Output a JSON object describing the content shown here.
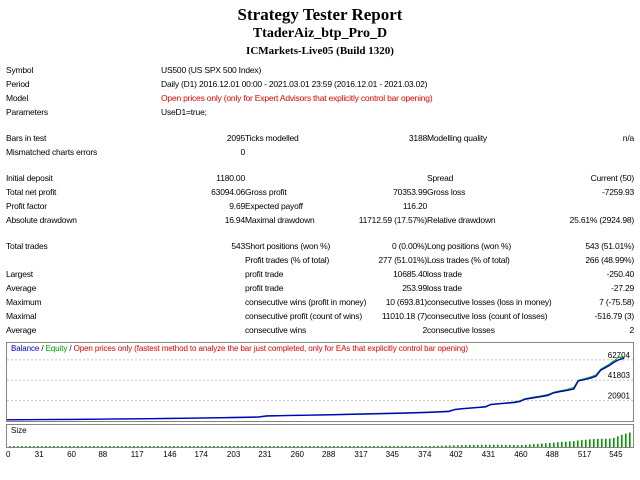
{
  "header": {
    "title": "Strategy Tester Report",
    "expert": "TtaderAiz_btp_Pro_D",
    "server": "ICMarkets-Live05 (Build 1320)"
  },
  "report_rows": [
    {
      "type": "wide",
      "label": "Symbol",
      "value": "US500 (US SPX 500 Index)"
    },
    {
      "type": "wide",
      "label": "Period",
      "value": "Daily (D1) 2016.12.01 00:00 - 2021.03.01 23:59 (2016.12.01 - 2021.03.02)"
    },
    {
      "type": "wide",
      "label": "Model",
      "value": "Open prices only (only for Expert Advisors that explicitly control bar opening)",
      "color": "#e00000"
    },
    {
      "type": "wide",
      "label": "Parameters",
      "value": "UseD1=true;"
    },
    {
      "type": "spacer"
    },
    {
      "type": "cells",
      "cells": [
        "Bars in test",
        "2095",
        "Ticks modelled",
        "3188",
        "Modelling quality",
        "n/a"
      ]
    },
    {
      "type": "cells",
      "cells": [
        "Mismatched charts errors",
        "0",
        "",
        "",
        "",
        ""
      ]
    },
    {
      "type": "spacer"
    },
    {
      "type": "cells",
      "cells": [
        "Initial deposit",
        "1180.00",
        "",
        "",
        "Spread",
        "Current (50)"
      ]
    },
    {
      "type": "cells",
      "cells": [
        "Total net profit",
        "63094.06",
        "Gross profit",
        "70353.99",
        "Gross loss",
        "-7259.93"
      ]
    },
    {
      "type": "cells",
      "cells": [
        "Profit factor",
        "9.69",
        "Expected payoff",
        "116.20",
        "",
        ""
      ]
    },
    {
      "type": "cells",
      "cells": [
        "Absolute drawdown",
        "16.94",
        "Maximal drawdown",
        "11712.59 (17.57%)",
        "Relative drawdown",
        "25.61% (2924.98)"
      ]
    },
    {
      "type": "spacer"
    },
    {
      "type": "cells",
      "cells": [
        "Total trades",
        "543",
        "Short positions (won %)",
        "0 (0.00%)",
        "Long positions (won %)",
        "543 (51.01%)"
      ]
    },
    {
      "type": "cells",
      "cells": [
        "",
        "",
        "Profit trades (% of total)",
        "277 (51.01%)",
        "Loss trades (% of total)",
        "266 (48.99%)"
      ]
    },
    {
      "type": "cells",
      "cells": [
        "Largest",
        "",
        "profit trade",
        "10685.40",
        "loss trade",
        "-250.40"
      ]
    },
    {
      "type": "cells",
      "cells": [
        "Average",
        "",
        "profit trade",
        "253.99",
        "loss trade",
        "-27.29"
      ]
    },
    {
      "type": "cells",
      "cells": [
        "Maximum",
        "",
        "consecutive wins (profit in money)",
        "10 (693.81)",
        "consecutive losses (loss in money)",
        "7 (-75.58)"
      ]
    },
    {
      "type": "cells",
      "cells": [
        "Maximal",
        "",
        "consecutive profit (count of wins)",
        "11010.18 (7)",
        "consecutive loss (count of losses)",
        "-516.79 (3)"
      ]
    },
    {
      "type": "cells",
      "cells": [
        "Average",
        "",
        "consecutive wins",
        "2",
        "consecutive losses",
        "2"
      ]
    }
  ],
  "chart_data": {
    "type": "line",
    "legend": {
      "balance": "Balance",
      "sep": " / ",
      "equity": "Equity",
      "note": "Open prices only (fastest method to analyze the bar just completed, only for EAs that explicitly control bar opening)"
    },
    "size_label": "Size",
    "x_max": 560,
    "y_max": 80000,
    "y_ticks": [
      62704,
      41803,
      20901
    ],
    "x_ticks": [
      0,
      31,
      60,
      88,
      117,
      146,
      174,
      203,
      231,
      260,
      288,
      317,
      345,
      374,
      402,
      431,
      460,
      488,
      517,
      545
    ],
    "balance_color": "#0000c8",
    "equity_color": "#00a000",
    "size_color": "#009900",
    "grid_color": "#c8c8c8",
    "note_color": "#e00000",
    "balance": [
      [
        0,
        1180
      ],
      [
        30,
        1400
      ],
      [
        60,
        1650
      ],
      [
        90,
        1950
      ],
      [
        120,
        2300
      ],
      [
        150,
        2700
      ],
      [
        180,
        3150
      ],
      [
        205,
        3600
      ],
      [
        225,
        4000
      ],
      [
        232,
        5100
      ],
      [
        250,
        5500
      ],
      [
        270,
        5950
      ],
      [
        290,
        6400
      ],
      [
        310,
        6900
      ],
      [
        330,
        7400
      ],
      [
        350,
        7900
      ],
      [
        370,
        8500
      ],
      [
        385,
        9100
      ],
      [
        395,
        9700
      ],
      [
        401,
        11800
      ],
      [
        408,
        12600
      ],
      [
        415,
        13200
      ],
      [
        422,
        13900
      ],
      [
        428,
        14500
      ],
      [
        433,
        16900
      ],
      [
        440,
        17600
      ],
      [
        447,
        18300
      ],
      [
        454,
        19000
      ],
      [
        459,
        20000
      ],
      [
        463,
        22300
      ],
      [
        470,
        23600
      ],
      [
        477,
        24800
      ],
      [
        484,
        26200
      ],
      [
        489,
        28800
      ],
      [
        495,
        30200
      ],
      [
        501,
        31400
      ],
      [
        507,
        32800
      ],
      [
        511,
        41000
      ],
      [
        517,
        42600
      ],
      [
        523,
        44300
      ],
      [
        527,
        46000
      ],
      [
        531,
        52000
      ],
      [
        535,
        54500
      ],
      [
        539,
        57000
      ],
      [
        542,
        59500
      ],
      [
        545,
        61500
      ],
      [
        548,
        63200
      ],
      [
        552,
        64274
      ]
    ],
    "equity": [
      [
        0,
        1180
      ],
      [
        30,
        1500
      ],
      [
        60,
        1800
      ],
      [
        90,
        2100
      ],
      [
        120,
        2500
      ],
      [
        150,
        2950
      ],
      [
        180,
        3400
      ],
      [
        205,
        3900
      ],
      [
        225,
        4400
      ],
      [
        232,
        5300
      ],
      [
        250,
        5750
      ],
      [
        270,
        6200
      ],
      [
        290,
        6700
      ],
      [
        310,
        7250
      ],
      [
        330,
        7750
      ],
      [
        350,
        8300
      ],
      [
        370,
        8950
      ],
      [
        385,
        9600
      ],
      [
        395,
        10300
      ],
      [
        401,
        12100
      ],
      [
        408,
        12900
      ],
      [
        415,
        13600
      ],
      [
        422,
        14300
      ],
      [
        428,
        15100
      ],
      [
        433,
        17300
      ],
      [
        440,
        18000
      ],
      [
        447,
        18800
      ],
      [
        454,
        19600
      ],
      [
        459,
        20800
      ],
      [
        463,
        22900
      ],
      [
        470,
        24300
      ],
      [
        477,
        25600
      ],
      [
        484,
        27200
      ],
      [
        489,
        29500
      ],
      [
        495,
        31000
      ],
      [
        501,
        32300
      ],
      [
        507,
        34500
      ],
      [
        511,
        41800
      ],
      [
        517,
        43500
      ],
      [
        523,
        45500
      ],
      [
        527,
        47500
      ],
      [
        531,
        53000
      ],
      [
        535,
        55800
      ],
      [
        539,
        58500
      ],
      [
        542,
        61000
      ],
      [
        545,
        63500
      ],
      [
        547,
        66200
      ],
      [
        549,
        64800
      ],
      [
        551,
        66500
      ],
      [
        552,
        64274
      ]
    ],
    "size_envelope": [
      [
        0,
        0.08
      ],
      [
        120,
        0.11
      ],
      [
        220,
        0.16
      ],
      [
        300,
        0.24
      ],
      [
        360,
        0.35
      ],
      [
        410,
        0.55
      ],
      [
        450,
        0.8
      ],
      [
        480,
        1.1
      ],
      [
        505,
        1.6
      ],
      [
        520,
        2.4
      ],
      [
        535,
        3.4
      ],
      [
        548,
        4.6
      ],
      [
        560,
        5.0
      ]
    ],
    "size_max": 5.0
  }
}
